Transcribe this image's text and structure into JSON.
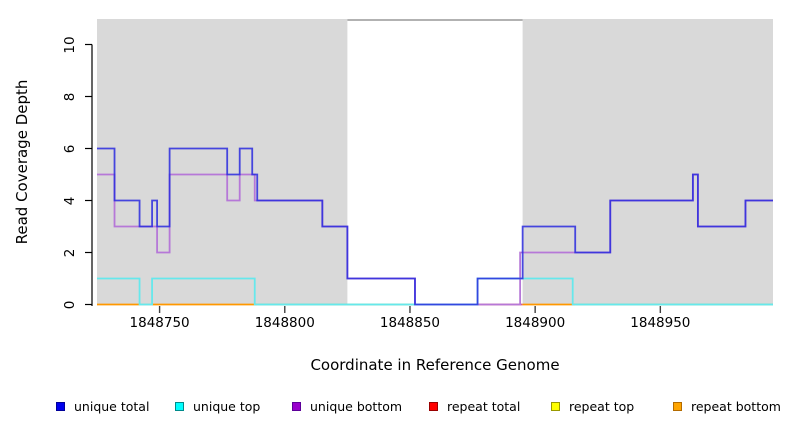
{
  "chart_data": {
    "type": "line",
    "subtype": "step",
    "title": "",
    "xlabel": "Coordinate in Reference Genome",
    "ylabel": "Read Coverage Depth",
    "xlim": [
      1848725,
      1848995
    ],
    "ylim": [
      0,
      11
    ],
    "xticks": [
      1848750,
      1848800,
      1848850,
      1848900,
      1848950
    ],
    "yticks": [
      0,
      2,
      4,
      6,
      8,
      10
    ],
    "grid": false,
    "legend_position": "bottom",
    "plot_background": "#ffffff",
    "shaded_bands": [
      {
        "from": 1848725,
        "to": 1848825,
        "color": "#d9d9d9"
      },
      {
        "from": 1848895,
        "to": 1848995,
        "color": "#d9d9d9"
      }
    ],
    "gap_band": {
      "from": 1848825,
      "to": 1848895,
      "top_line_color": "#999999"
    },
    "series": [
      {
        "name": "unique total",
        "color": "#2a2ade",
        "opacity": 0.85,
        "points": [
          [
            1848725,
            6
          ],
          [
            1848732,
            4
          ],
          [
            1848742,
            3
          ],
          [
            1848747,
            4
          ],
          [
            1848749,
            3
          ],
          [
            1848754,
            6
          ],
          [
            1848777,
            5
          ],
          [
            1848782,
            6
          ],
          [
            1848787,
            5
          ],
          [
            1848789,
            4
          ],
          [
            1848815,
            3
          ],
          [
            1848825,
            1
          ],
          [
            1848852,
            0
          ],
          [
            1848877,
            1
          ],
          [
            1848895,
            3
          ],
          [
            1848916,
            2
          ],
          [
            1848930,
            4
          ],
          [
            1848963,
            5
          ],
          [
            1848965,
            3
          ],
          [
            1848984,
            4
          ]
        ]
      },
      {
        "name": "unique top",
        "color": "#66e8ec",
        "opacity": 1,
        "points": [
          [
            1848725,
            1
          ],
          [
            1848742,
            0
          ],
          [
            1848747,
            1
          ],
          [
            1848788,
            0
          ],
          [
            1848877,
            1
          ],
          [
            1848915,
            0
          ]
        ]
      },
      {
        "name": "unique bottom",
        "color": "#b678d8",
        "opacity": 1,
        "points": [
          [
            1848725,
            5
          ],
          [
            1848732,
            3
          ],
          [
            1848749,
            2
          ],
          [
            1848754,
            5
          ],
          [
            1848777,
            4
          ],
          [
            1848782,
            5
          ],
          [
            1848788,
            4
          ],
          [
            1848815,
            3
          ],
          [
            1848825,
            1
          ],
          [
            1848852,
            0
          ],
          [
            1848894,
            2
          ],
          [
            1848930,
            4
          ],
          [
            1848963,
            5
          ],
          [
            1848965,
            3
          ],
          [
            1848984,
            4
          ]
        ]
      }
    ],
    "baseline_segments": [
      {
        "from": 1848725,
        "to": 1848742,
        "color": "#ff9800",
        "series": "repeat bottom"
      },
      {
        "from": 1848742,
        "to": 1848747,
        "color": "#a8cfa8",
        "series": "repeat top + unique top"
      },
      {
        "from": 1848747,
        "to": 1848789,
        "color": "#ff9800",
        "series": "repeat bottom"
      },
      {
        "from": 1848789,
        "to": 1848852,
        "color": "#8fd48f",
        "series": "repeat top + unique top"
      },
      {
        "from": 1848877,
        "to": 1848895,
        "color": "#e0607f",
        "series": "repeat total"
      },
      {
        "from": 1848895,
        "to": 1848916,
        "color": "#ff9800",
        "series": "repeat bottom"
      },
      {
        "from": 1848916,
        "to": 1848995,
        "color": "#8fd48f",
        "series": "repeat top + unique top"
      }
    ],
    "legend": [
      {
        "label": "unique total",
        "fill": "#0000ee",
        "border": "#000099"
      },
      {
        "label": "unique top",
        "fill": "#00ffff",
        "border": "#008b8b"
      },
      {
        "label": "unique bottom",
        "fill": "#9900cc",
        "border": "#5c0099"
      },
      {
        "label": "repeat total",
        "fill": "#ff0000",
        "border": "#990000"
      },
      {
        "label": "repeat top",
        "fill": "#ffff00",
        "border": "#999900"
      },
      {
        "label": "repeat bottom",
        "fill": "#ffa500",
        "border": "#b36b00"
      }
    ],
    "axis_color": "#404040"
  }
}
